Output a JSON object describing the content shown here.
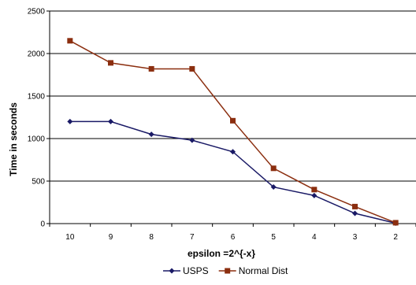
{
  "chart_data": {
    "type": "line",
    "title": "",
    "xlabel": "epsilon =2^{-x}",
    "ylabel": "Time in seconds",
    "categories": [
      "10",
      "9",
      "8",
      "7",
      "6",
      "5",
      "4",
      "3",
      "2"
    ],
    "ylim": [
      0,
      2500
    ],
    "yticks": [
      0,
      500,
      1000,
      1500,
      2000,
      2500
    ],
    "grid": true,
    "legend_position": "bottom",
    "series": [
      {
        "name": "USPS",
        "color": "#1a1a66",
        "marker": "diamond",
        "values": [
          1200,
          1200,
          1050,
          980,
          845,
          430,
          330,
          120,
          5
        ]
      },
      {
        "name": "Normal Dist",
        "color": "#8b2e0f",
        "marker": "square",
        "values": [
          2150,
          1890,
          1820,
          1820,
          1210,
          650,
          400,
          200,
          10
        ]
      }
    ]
  }
}
